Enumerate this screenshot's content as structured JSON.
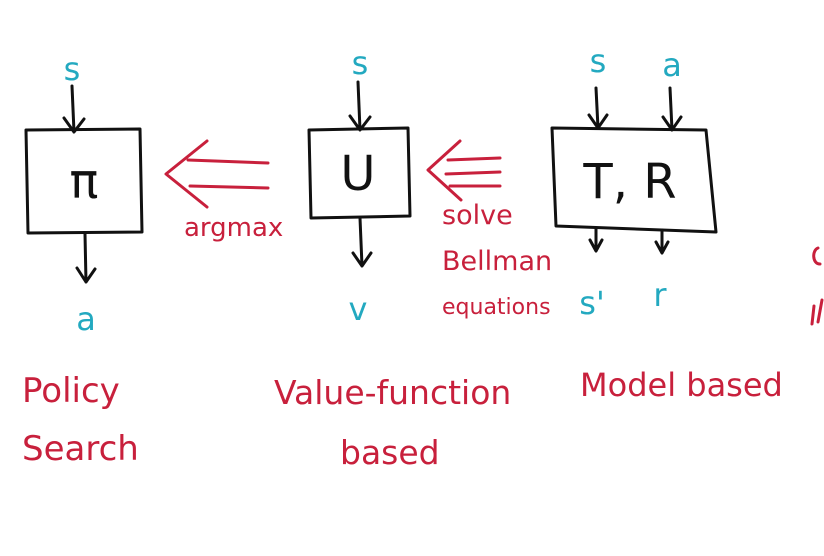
{
  "colors": {
    "ink": "#111111",
    "input_output": "#23a9c0",
    "annotation": "#c8203c"
  },
  "blocks": [
    {
      "id": "policy",
      "symbol": "π",
      "inputs": [
        "s"
      ],
      "outputs": [
        "a"
      ],
      "caption_lines": [
        "Policy",
        "Search"
      ]
    },
    {
      "id": "value",
      "symbol": "U",
      "inputs": [
        "s"
      ],
      "outputs": [
        "v"
      ],
      "caption_lines": [
        "Value-function",
        "based"
      ]
    },
    {
      "id": "model",
      "symbol": "T, R",
      "inputs": [
        "s",
        "a"
      ],
      "outputs": [
        "s'",
        "r"
      ],
      "caption_lines": [
        "Model based"
      ]
    }
  ],
  "transitions": [
    {
      "from": "value",
      "to": "policy",
      "label_lines": [
        "argmax"
      ]
    },
    {
      "from": "model",
      "to": "value",
      "label_lines": [
        "solve",
        "Bellman",
        "equations"
      ]
    }
  ]
}
